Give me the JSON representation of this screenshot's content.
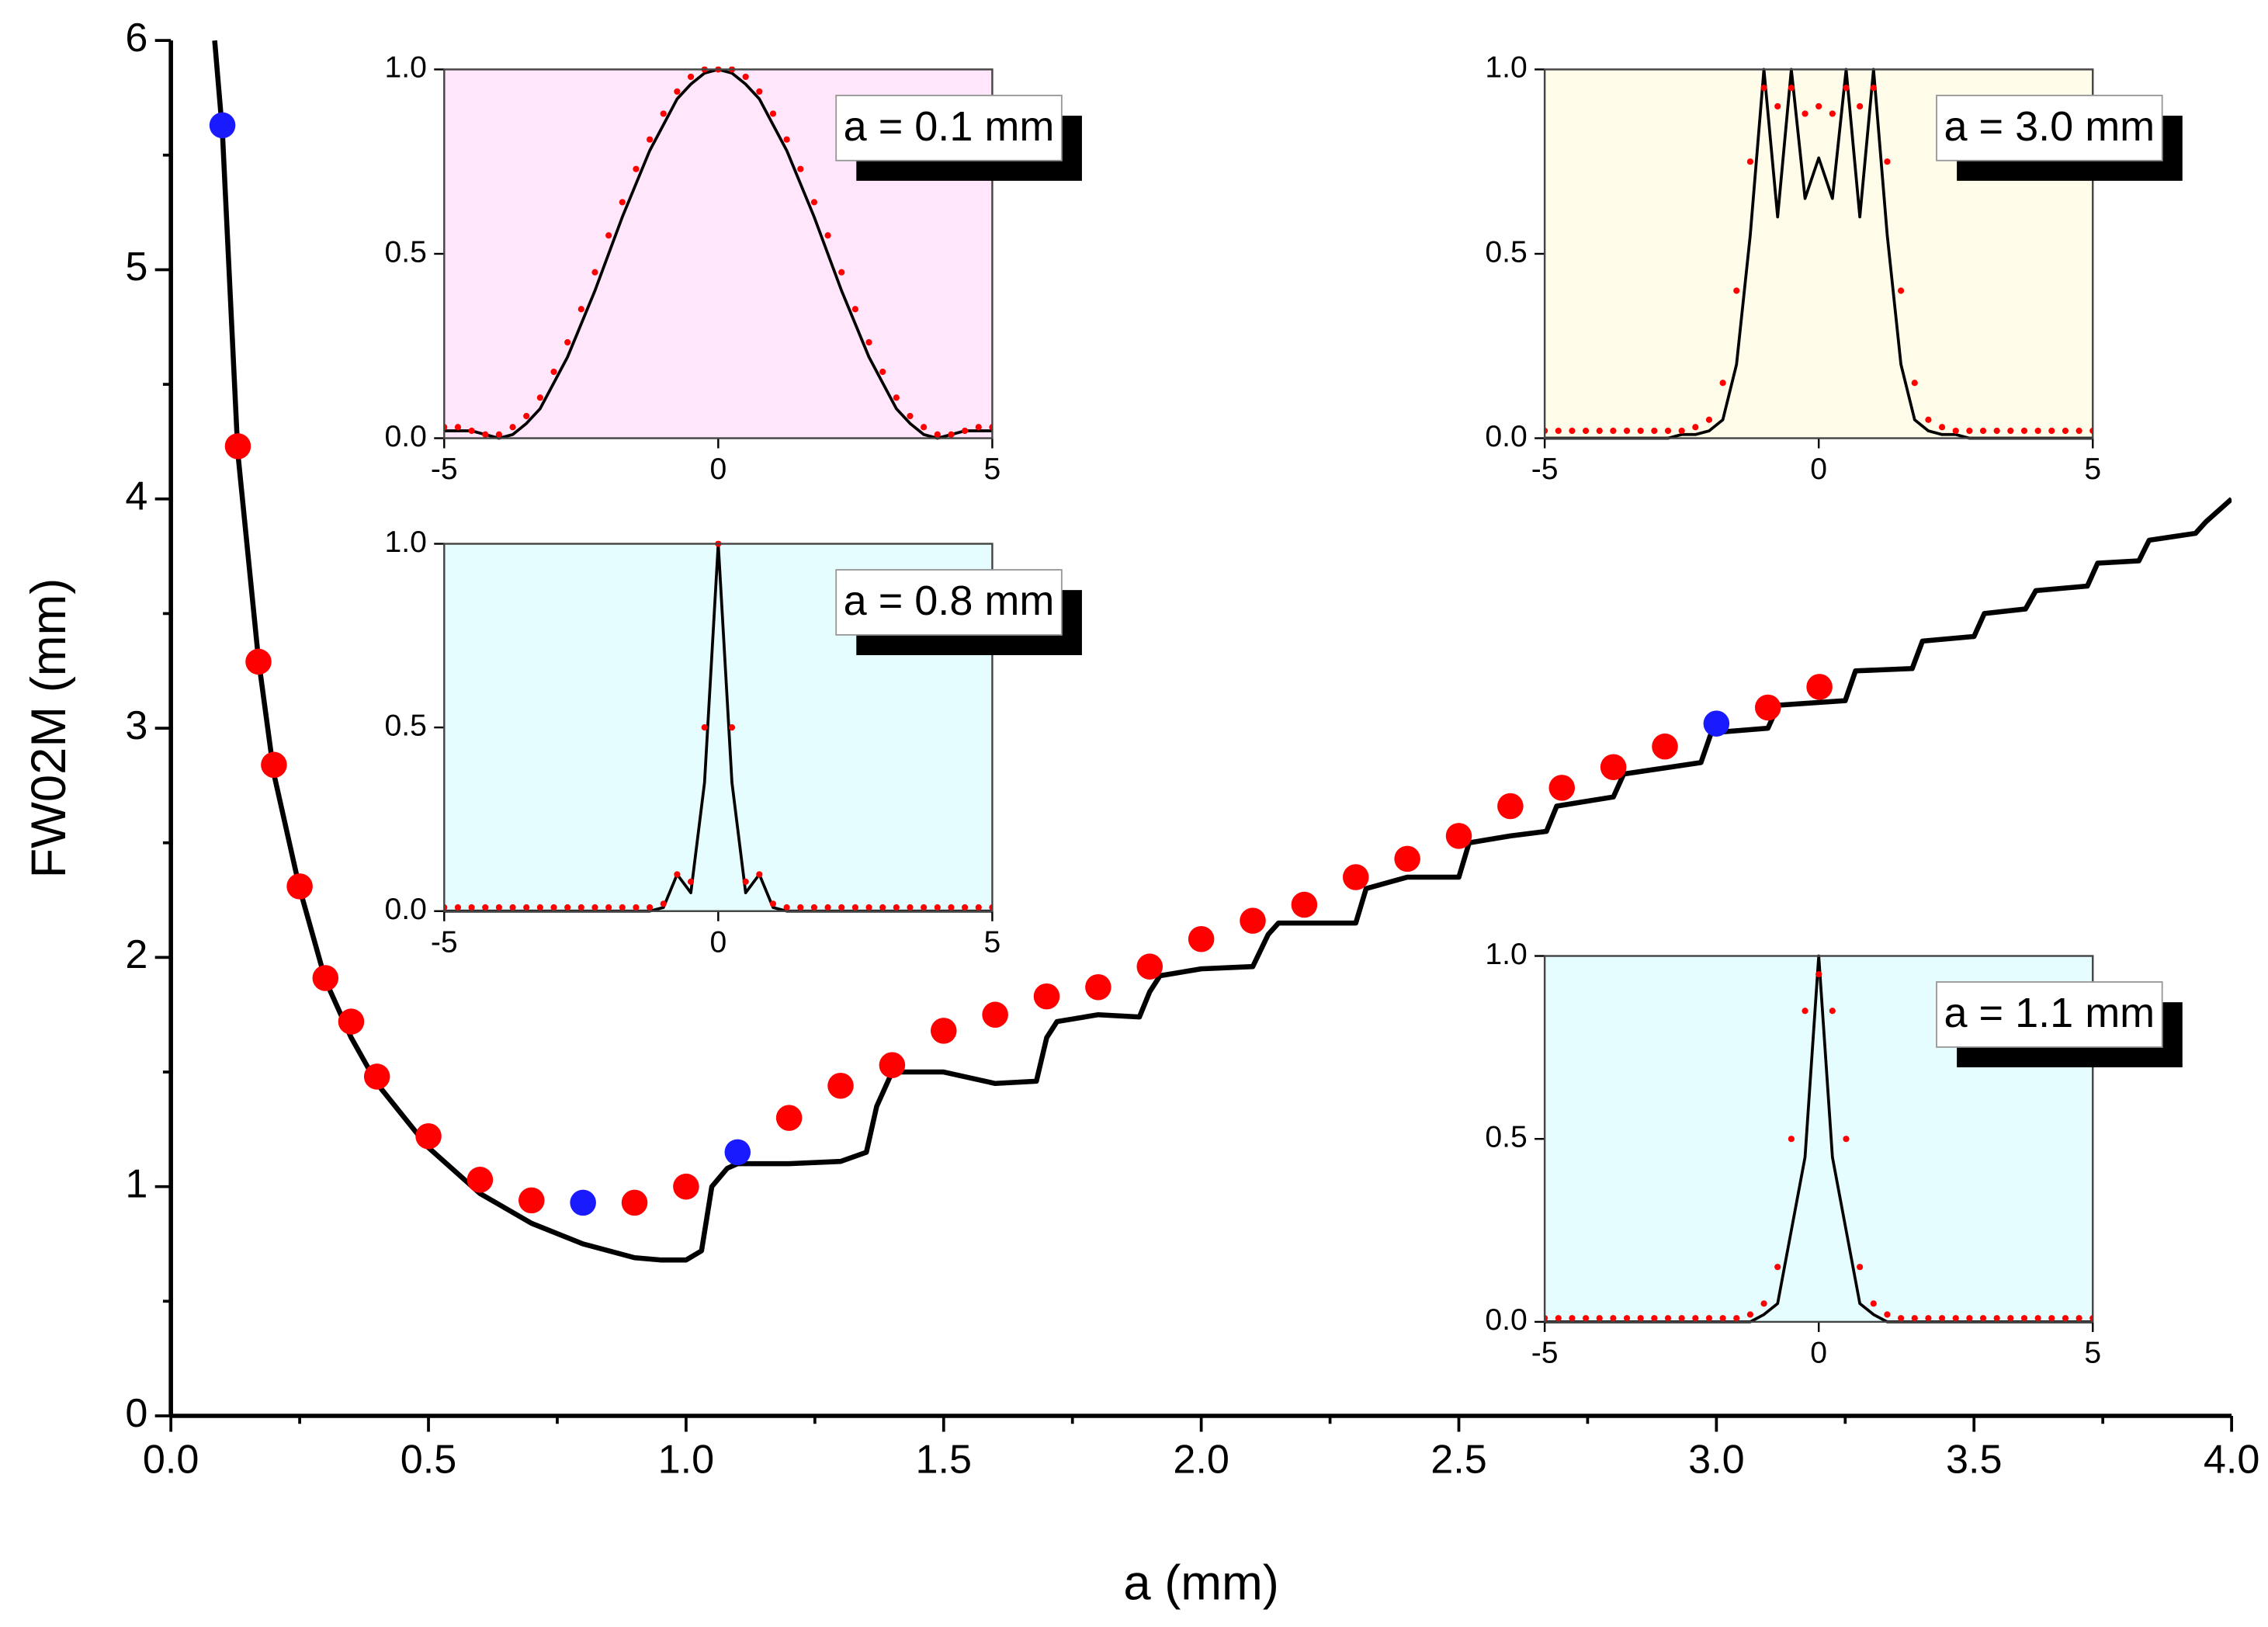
{
  "chart_data": [
    {
      "type": "scatter",
      "x_label": "a (mm)",
      "y_label": "FW02M (mm)",
      "xlim": [
        0,
        4
      ],
      "xticks": [
        {
          "value": 0,
          "label": "0.0"
        },
        {
          "value": 0.5,
          "label": "0.5"
        },
        {
          "value": 1,
          "label": "1.0"
        },
        {
          "value": 1.5,
          "label": "1.5"
        },
        {
          "value": 2,
          "label": "2.0"
        },
        {
          "value": 2.5,
          "label": "2.5"
        },
        {
          "value": 3,
          "label": "3.0"
        },
        {
          "value": 3.5,
          "label": "3.5"
        },
        {
          "value": 4,
          "label": "4.0"
        }
      ],
      "ylim": [
        0,
        6
      ],
      "yticks": [
        0,
        1,
        2,
        3,
        4,
        5,
        6
      ],
      "series": [
        {
          "mode": "line",
          "color": "#000000",
          "x": [
            0.085,
            0.1,
            0.13,
            0.17,
            0.2,
            0.25,
            0.3,
            0.35,
            0.4,
            0.5,
            0.6,
            0.7,
            0.8,
            0.9,
            0.95,
            1.0,
            1.03,
            1.05,
            1.08,
            1.1,
            1.2,
            1.3,
            1.35,
            1.37,
            1.4,
            1.5,
            1.6,
            1.68,
            1.7,
            1.72,
            1.8,
            1.88,
            1.9,
            1.92,
            2.0,
            2.1,
            2.13,
            2.15,
            2.3,
            2.32,
            2.4,
            2.5,
            2.52,
            2.6,
            2.67,
            2.69,
            2.8,
            2.82,
            2.97,
            2.99,
            3.1,
            3.12,
            3.25,
            3.27,
            3.38,
            3.4,
            3.5,
            3.52,
            3.6,
            3.62,
            3.72,
            3.74,
            3.82,
            3.84,
            3.93,
            3.95,
            4.0
          ],
          "values": [
            6,
            5.6,
            4.2,
            3.3,
            2.8,
            2.3,
            1.9,
            1.65,
            1.45,
            1.17,
            0.97,
            0.84,
            0.75,
            0.69,
            0.68,
            0.68,
            0.72,
            1.0,
            1.08,
            1.1,
            1.1,
            1.11,
            1.15,
            1.35,
            1.5,
            1.5,
            1.45,
            1.46,
            1.65,
            1.72,
            1.75,
            1.74,
            1.85,
            1.92,
            1.95,
            1.96,
            2.1,
            2.15,
            2.15,
            2.3,
            2.35,
            2.35,
            2.5,
            2.53,
            2.55,
            2.66,
            2.7,
            2.8,
            2.85,
            2.98,
            3.0,
            3.1,
            3.12,
            3.25,
            3.26,
            3.38,
            3.4,
            3.5,
            3.52,
            3.6,
            3.62,
            3.72,
            3.73,
            3.82,
            3.85,
            3.9,
            4.0
          ]
        },
        {
          "mode": "markers",
          "color": "#ff0000",
          "x": [
            0.13,
            0.17,
            0.2,
            0.25,
            0.3,
            0.35,
            0.4,
            0.5,
            0.6,
            0.7,
            0.9,
            1.0,
            1.2,
            1.3,
            1.4,
            1.5,
            1.6,
            1.7,
            1.8,
            1.9,
            2.0,
            2.1,
            2.2,
            2.3,
            2.4,
            2.5,
            2.6,
            2.7,
            2.8,
            2.9,
            3.1,
            3.2
          ],
          "values": [
            4.23,
            3.29,
            2.84,
            2.31,
            1.91,
            1.72,
            1.48,
            1.22,
            1.03,
            0.94,
            0.93,
            1.0,
            1.3,
            1.44,
            1.53,
            1.68,
            1.75,
            1.83,
            1.87,
            1.96,
            2.08,
            2.16,
            2.23,
            2.35,
            2.43,
            2.53,
            2.66,
            2.74,
            2.83,
            2.92,
            3.09,
            3.18
          ]
        },
        {
          "mode": "markers",
          "color": "#1a1aff",
          "x": [
            0.1,
            0.8,
            1.1,
            3.0
          ],
          "values": [
            5.63,
            0.93,
            1.15,
            3.02
          ]
        }
      ]
    },
    {
      "type": "line",
      "annotation": "a = 0.1 mm",
      "background": "#ffe6fa",
      "x": [
        -5,
        -4.75,
        -4.5,
        -4.25,
        -4,
        -3.75,
        -3.5,
        -3.25,
        -3,
        -2.75,
        -2.5,
        -2.25,
        -2,
        -1.75,
        -1.5,
        -1.25,
        -1,
        -0.75,
        -0.5,
        -0.25,
        0,
        0.25,
        0.5,
        0.75,
        1,
        1.25,
        1.5,
        1.75,
        2,
        2.25,
        2.5,
        2.75,
        3,
        3.25,
        3.5,
        3.75,
        4,
        4.25,
        4.5,
        4.75,
        5
      ],
      "xlim": [
        -5,
        5
      ],
      "xticks": [
        -5,
        0,
        5
      ],
      "ylim": [
        0,
        1
      ],
      "yticks": [
        {
          "value": 0,
          "label": "0.0"
        },
        {
          "value": 0.5,
          "label": "0.5"
        },
        {
          "value": 1,
          "label": "1.0"
        }
      ],
      "series": [
        {
          "mode": "line",
          "color": "#000000",
          "values": [
            0.02,
            0.02,
            0.02,
            0.01,
            0,
            0.01,
            0.04,
            0.08,
            0.15,
            0.22,
            0.31,
            0.4,
            0.5,
            0.6,
            0.69,
            0.78,
            0.85,
            0.92,
            0.96,
            0.99,
            1,
            0.99,
            0.96,
            0.92,
            0.85,
            0.78,
            0.69,
            0.6,
            0.5,
            0.4,
            0.31,
            0.22,
            0.15,
            0.08,
            0.04,
            0.01,
            0,
            0.01,
            0.02,
            0.02,
            0.02
          ]
        },
        {
          "mode": "dots",
          "color": "#ff0000",
          "values": [
            0.03,
            0.03,
            0.02,
            0.01,
            0.01,
            0.03,
            0.06,
            0.11,
            0.18,
            0.26,
            0.35,
            0.45,
            0.55,
            0.64,
            0.73,
            0.81,
            0.88,
            0.94,
            0.98,
            1,
            1,
            1,
            0.98,
            0.94,
            0.88,
            0.81,
            0.73,
            0.64,
            0.55,
            0.45,
            0.35,
            0.26,
            0.18,
            0.11,
            0.06,
            0.03,
            0.01,
            0.01,
            0.02,
            0.03,
            0.03
          ]
        }
      ]
    },
    {
      "type": "line",
      "annotation": "a = 3.0 mm",
      "background": "#fffdea",
      "x": [
        -5,
        -4.75,
        -4.5,
        -4.25,
        -4,
        -3.75,
        -3.5,
        -3.25,
        -3,
        -2.75,
        -2.5,
        -2.25,
        -2,
        -1.75,
        -1.5,
        -1.25,
        -1,
        -0.75,
        -0.5,
        -0.25,
        0,
        0.25,
        0.5,
        0.75,
        1,
        1.25,
        1.5,
        1.75,
        2,
        2.25,
        2.5,
        2.75,
        3,
        3.25,
        3.5,
        3.75,
        4,
        4.25,
        4.5,
        4.75,
        5
      ],
      "xlim": [
        -5,
        5
      ],
      "xticks": [
        -5,
        0,
        5
      ],
      "ylim": [
        0,
        1
      ],
      "yticks": [
        {
          "value": 0,
          "label": "0.0"
        },
        {
          "value": 0.5,
          "label": "0.5"
        },
        {
          "value": 1,
          "label": "1.0"
        }
      ],
      "series": [
        {
          "mode": "line",
          "color": "#000000",
          "values": [
            0,
            0,
            0,
            0,
            0,
            0,
            0,
            0,
            0,
            0,
            0.01,
            0.01,
            0.02,
            0.05,
            0.2,
            0.55,
            1,
            0.6,
            1,
            0.65,
            0.76,
            0.65,
            1,
            0.6,
            1,
            0.55,
            0.2,
            0.05,
            0.02,
            0.01,
            0.01,
            0,
            0,
            0,
            0,
            0,
            0,
            0,
            0,
            0,
            0
          ]
        },
        {
          "mode": "dots",
          "color": "#ff0000",
          "values": [
            0.02,
            0.02,
            0.02,
            0.02,
            0.02,
            0.02,
            0.02,
            0.02,
            0.02,
            0.02,
            0.02,
            0.03,
            0.05,
            0.15,
            0.4,
            0.75,
            0.95,
            0.9,
            0.95,
            0.88,
            0.9,
            0.88,
            0.95,
            0.9,
            0.95,
            0.75,
            0.4,
            0.15,
            0.05,
            0.03,
            0.02,
            0.02,
            0.02,
            0.02,
            0.02,
            0.02,
            0.02,
            0.02,
            0.02,
            0.02,
            0.02
          ]
        }
      ]
    },
    {
      "type": "line",
      "annotation": "a = 0.8 mm",
      "background": "#e6fdff",
      "x": [
        -5,
        -4.75,
        -4.5,
        -4.25,
        -4,
        -3.75,
        -3.5,
        -3.25,
        -3,
        -2.75,
        -2.5,
        -2.25,
        -2,
        -1.75,
        -1.5,
        -1.25,
        -1,
        -0.75,
        -0.5,
        -0.25,
        0,
        0.25,
        0.5,
        0.75,
        1,
        1.25,
        1.5,
        1.75,
        2,
        2.25,
        2.5,
        2.75,
        3,
        3.25,
        3.5,
        3.75,
        4,
        4.25,
        4.5,
        4.75,
        5
      ],
      "xlim": [
        -5,
        5
      ],
      "xticks": [
        -5,
        0,
        5
      ],
      "ylim": [
        0,
        1
      ],
      "yticks": [
        {
          "value": 0,
          "label": "0.0"
        },
        {
          "value": 0.5,
          "label": "0.5"
        },
        {
          "value": 1,
          "label": "1.0"
        }
      ],
      "series": [
        {
          "mode": "line",
          "color": "#000000",
          "values": [
            0,
            0,
            0,
            0,
            0,
            0,
            0,
            0,
            0,
            0,
            0,
            0,
            0,
            0,
            0,
            0,
            0.01,
            0.1,
            0.05,
            0.35,
            1,
            0.35,
            0.05,
            0.1,
            0.01,
            0,
            0,
            0,
            0,
            0,
            0,
            0,
            0,
            0,
            0,
            0,
            0,
            0,
            0,
            0,
            0
          ]
        },
        {
          "mode": "dots",
          "color": "#ff0000",
          "values": [
            0.01,
            0.01,
            0.01,
            0.01,
            0.01,
            0.01,
            0.01,
            0.01,
            0.01,
            0.01,
            0.01,
            0.01,
            0.01,
            0.01,
            0.01,
            0.01,
            0.02,
            0.1,
            0.08,
            0.5,
            1,
            0.5,
            0.08,
            0.1,
            0.02,
            0.01,
            0.01,
            0.01,
            0.01,
            0.01,
            0.01,
            0.01,
            0.01,
            0.01,
            0.01,
            0.01,
            0.01,
            0.01,
            0.01,
            0.01,
            0.01
          ]
        }
      ]
    },
    {
      "type": "line",
      "annotation": "a = 1.1 mm",
      "background": "#e6fdff",
      "x": [
        -5,
        -4.75,
        -4.5,
        -4.25,
        -4,
        -3.75,
        -3.5,
        -3.25,
        -3,
        -2.75,
        -2.5,
        -2.25,
        -2,
        -1.75,
        -1.5,
        -1.25,
        -1,
        -0.75,
        -0.5,
        -0.25,
        0,
        0.25,
        0.5,
        0.75,
        1,
        1.25,
        1.5,
        1.75,
        2,
        2.25,
        2.5,
        2.75,
        3,
        3.25,
        3.5,
        3.75,
        4,
        4.25,
        4.5,
        4.75,
        5
      ],
      "xlim": [
        -5,
        5
      ],
      "xticks": [
        -5,
        0,
        5
      ],
      "ylim": [
        0,
        1
      ],
      "yticks": [
        {
          "value": 0,
          "label": "0.0"
        },
        {
          "value": 0.5,
          "label": "0.5"
        },
        {
          "value": 1,
          "label": "1.0"
        }
      ],
      "series": [
        {
          "mode": "line",
          "color": "#000000",
          "values": [
            0,
            0,
            0,
            0,
            0,
            0,
            0,
            0,
            0,
            0,
            0,
            0,
            0,
            0,
            0,
            0,
            0.02,
            0.05,
            0.25,
            0.45,
            1,
            0.45,
            0.25,
            0.05,
            0.02,
            0,
            0,
            0,
            0,
            0,
            0,
            0,
            0,
            0,
            0,
            0,
            0,
            0,
            0,
            0,
            0
          ]
        },
        {
          "mode": "dots",
          "color": "#ff0000",
          "values": [
            0.01,
            0.01,
            0.01,
            0.01,
            0.01,
            0.01,
            0.01,
            0.01,
            0.01,
            0.01,
            0.01,
            0.01,
            0.01,
            0.01,
            0.01,
            0.02,
            0.05,
            0.15,
            0.5,
            0.85,
            0.95,
            0.85,
            0.5,
            0.15,
            0.05,
            0.02,
            0.01,
            0.01,
            0.01,
            0.01,
            0.01,
            0.01,
            0.01,
            0.01,
            0.01,
            0.01,
            0.01,
            0.01,
            0.01,
            0.01,
            0.01
          ]
        }
      ]
    }
  ]
}
